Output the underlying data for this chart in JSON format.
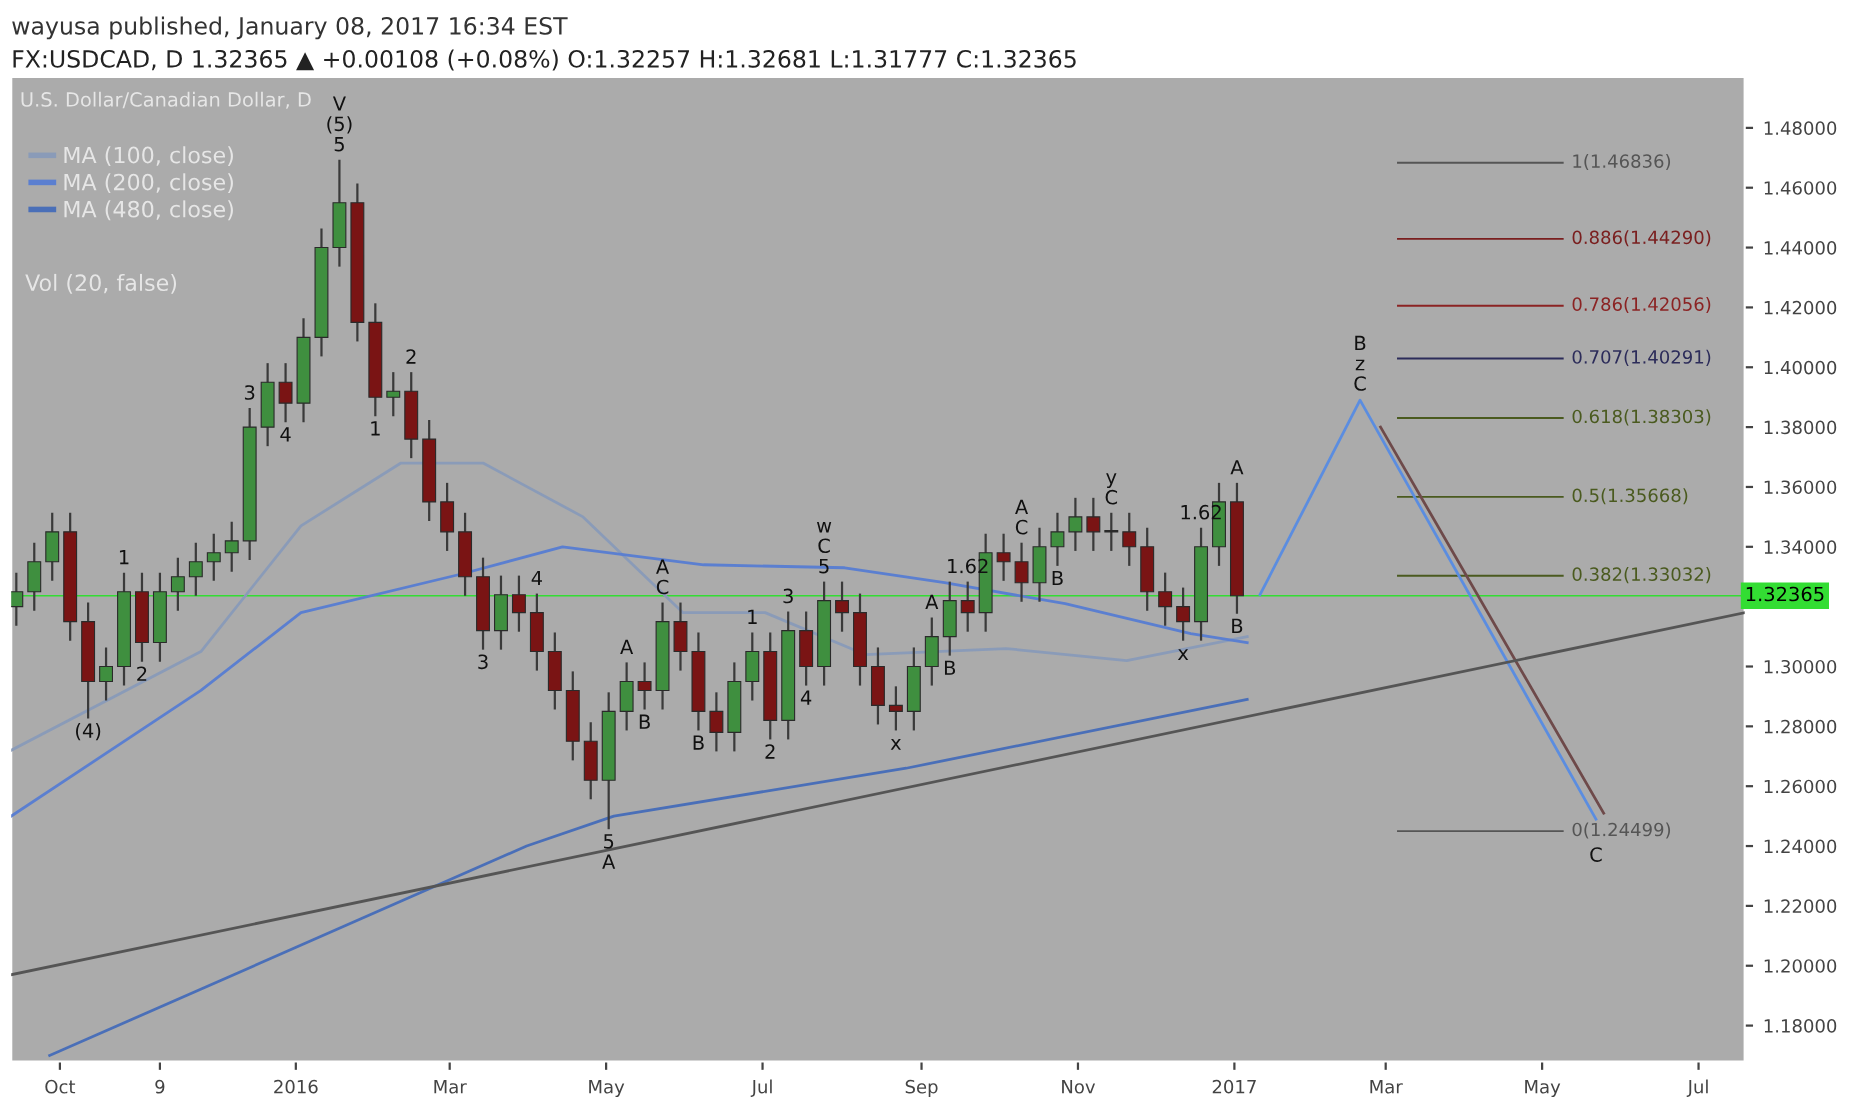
{
  "chart_data": {
    "type": "candlestick",
    "title": "wayusa published, January 08, 2017 16:34 EST",
    "subtitle": "FX:USDCAD, D 1.32365 ▲ +0.00108 (+0.08%) O:1.32257 H:1.32681 L:1.31777 C:1.32365",
    "legend_title": "U.S. Dollar/Canadian Dollar, D",
    "x": [
      "2015-09-14",
      "2015-09-21",
      "2015-09-28",
      "2015-10-05",
      "2015-10-12",
      "2015-10-19",
      "2015-10-26",
      "2015-11-02",
      "2015-11-09",
      "2015-11-16",
      "2015-11-23",
      "2015-11-30",
      "2015-12-07",
      "2015-12-14",
      "2015-12-21",
      "2015-12-28",
      "2016-01-04",
      "2016-01-11",
      "2016-01-18",
      "2016-01-25",
      "2016-02-01",
      "2016-02-08",
      "2016-02-15",
      "2016-02-22",
      "2016-02-29",
      "2016-03-07",
      "2016-03-14",
      "2016-03-21",
      "2016-03-28",
      "2016-04-04",
      "2016-04-11",
      "2016-04-18",
      "2016-04-25",
      "2016-05-02",
      "2016-05-09",
      "2016-05-16",
      "2016-05-23",
      "2016-05-30",
      "2016-06-06",
      "2016-06-13",
      "2016-06-20",
      "2016-06-27",
      "2016-07-04",
      "2016-07-11",
      "2016-07-18",
      "2016-07-25",
      "2016-08-01",
      "2016-08-08",
      "2016-08-15",
      "2016-08-22",
      "2016-08-29",
      "2016-09-05",
      "2016-09-12",
      "2016-09-19",
      "2016-09-26",
      "2016-10-03",
      "2016-10-10",
      "2016-10-17",
      "2016-10-24",
      "2016-10-31",
      "2016-11-07",
      "2016-11-14",
      "2016-11-21",
      "2016-11-28",
      "2016-12-05",
      "2016-12-12",
      "2016-12-19",
      "2016-12-26",
      "2017-01-02"
    ],
    "ohlc": [
      [
        1.32,
        1.331,
        1.314,
        1.325
      ],
      [
        1.325,
        1.341,
        1.319,
        1.335
      ],
      [
        1.335,
        1.351,
        1.329,
        1.345
      ],
      [
        1.345,
        1.351,
        1.309,
        1.315
      ],
      [
        1.315,
        1.321,
        1.283,
        1.295
      ],
      [
        1.295,
        1.306,
        1.289,
        1.3
      ],
      [
        1.3,
        1.331,
        1.294,
        1.325
      ],
      [
        1.325,
        1.331,
        1.302,
        1.308
      ],
      [
        1.308,
        1.331,
        1.302,
        1.325
      ],
      [
        1.325,
        1.336,
        1.319,
        1.33
      ],
      [
        1.33,
        1.341,
        1.324,
        1.335
      ],
      [
        1.335,
        1.344,
        1.329,
        1.338
      ],
      [
        1.338,
        1.348,
        1.332,
        1.342
      ],
      [
        1.342,
        1.386,
        1.336,
        1.38
      ],
      [
        1.38,
        1.401,
        1.374,
        1.395
      ],
      [
        1.395,
        1.401,
        1.382,
        1.388
      ],
      [
        1.388,
        1.416,
        1.382,
        1.41
      ],
      [
        1.41,
        1.446,
        1.404,
        1.44
      ],
      [
        1.44,
        1.469,
        1.434,
        1.455
      ],
      [
        1.455,
        1.461,
        1.409,
        1.415
      ],
      [
        1.415,
        1.421,
        1.384,
        1.39
      ],
      [
        1.39,
        1.398,
        1.384,
        1.392
      ],
      [
        1.392,
        1.398,
        1.37,
        1.376
      ],
      [
        1.376,
        1.382,
        1.349,
        1.355
      ],
      [
        1.355,
        1.361,
        1.339,
        1.345
      ],
      [
        1.345,
        1.351,
        1.324,
        1.33
      ],
      [
        1.33,
        1.336,
        1.306,
        1.312
      ],
      [
        1.312,
        1.33,
        1.306,
        1.324
      ],
      [
        1.324,
        1.33,
        1.312,
        1.318
      ],
      [
        1.318,
        1.324,
        1.299,
        1.305
      ],
      [
        1.305,
        1.311,
        1.286,
        1.292
      ],
      [
        1.292,
        1.298,
        1.269,
        1.275
      ],
      [
        1.275,
        1.281,
        1.256,
        1.262
      ],
      [
        1.262,
        1.291,
        1.246,
        1.285
      ],
      [
        1.285,
        1.301,
        1.279,
        1.295
      ],
      [
        1.295,
        1.301,
        1.286,
        1.292
      ],
      [
        1.292,
        1.321,
        1.286,
        1.315
      ],
      [
        1.315,
        1.321,
        1.299,
        1.305
      ],
      [
        1.305,
        1.311,
        1.279,
        1.285
      ],
      [
        1.285,
        1.291,
        1.272,
        1.278
      ],
      [
        1.278,
        1.301,
        1.272,
        1.295
      ],
      [
        1.295,
        1.311,
        1.289,
        1.305
      ],
      [
        1.305,
        1.311,
        1.276,
        1.282
      ],
      [
        1.282,
        1.318,
        1.276,
        1.312
      ],
      [
        1.312,
        1.318,
        1.294,
        1.3
      ],
      [
        1.3,
        1.328,
        1.294,
        1.322
      ],
      [
        1.322,
        1.328,
        1.312,
        1.318
      ],
      [
        1.318,
        1.324,
        1.294,
        1.3
      ],
      [
        1.3,
        1.306,
        1.281,
        1.287
      ],
      [
        1.287,
        1.293,
        1.279,
        1.285
      ],
      [
        1.285,
        1.306,
        1.279,
        1.3
      ],
      [
        1.3,
        1.316,
        1.294,
        1.31
      ],
      [
        1.31,
        1.328,
        1.304,
        1.322
      ],
      [
        1.322,
        1.328,
        1.312,
        1.318
      ],
      [
        1.318,
        1.344,
        1.312,
        1.338
      ],
      [
        1.338,
        1.344,
        1.329,
        1.335
      ],
      [
        1.335,
        1.341,
        1.322,
        1.328
      ],
      [
        1.328,
        1.346,
        1.322,
        1.34
      ],
      [
        1.34,
        1.351,
        1.334,
        1.345
      ],
      [
        1.345,
        1.356,
        1.339,
        1.35
      ],
      [
        1.35,
        1.356,
        1.339,
        1.345
      ],
      [
        1.345,
        1.351,
        1.339,
        1.345
      ],
      [
        1.345,
        1.351,
        1.334,
        1.34
      ],
      [
        1.34,
        1.346,
        1.319,
        1.325
      ],
      [
        1.325,
        1.331,
        1.314,
        1.32
      ],
      [
        1.32,
        1.326,
        1.309,
        1.315
      ],
      [
        1.315,
        1.346,
        1.309,
        1.34
      ],
      [
        1.34,
        1.361,
        1.334,
        1.355
      ],
      [
        1.355,
        1.361,
        1.318,
        1.32365
      ]
    ],
    "series": [
      {
        "name": "MA (100, close)",
        "type": "line",
        "color": "#8a9bb8",
        "x": [
          "2015-09-12",
          "2015-11-25",
          "2016-01-03",
          "2016-02-11",
          "2016-03-14",
          "2016-04-22",
          "2016-05-31",
          "2016-07-02",
          "2016-08-10",
          "2016-10-04",
          "2016-11-20",
          "2017-01-06"
        ],
        "values": [
          1.272,
          1.305,
          1.347,
          1.368,
          1.368,
          1.35,
          1.318,
          1.318,
          1.304,
          1.306,
          1.302,
          1.31
        ]
      },
      {
        "name": "MA (200, close)",
        "type": "line",
        "color": "#5b7fd0",
        "x": [
          "2015-09-12",
          "2015-11-25",
          "2016-01-03",
          "2016-03-06",
          "2016-04-14",
          "2016-06-08",
          "2016-08-02",
          "2016-09-10",
          "2016-10-27",
          "2016-12-15",
          "2017-01-06"
        ],
        "values": [
          1.25,
          1.292,
          1.318,
          1.331,
          1.34,
          1.334,
          1.333,
          1.328,
          1.321,
          1.311,
          1.308
        ]
      },
      {
        "name": "MA (480, close)",
        "type": "line",
        "color": "#4a6fb8",
        "x": [
          "2015-09-27",
          "2016-03-31",
          "2016-05-04",
          "2016-08-26",
          "2017-01-06"
        ],
        "values": [
          1.17,
          1.24,
          1.25,
          1.266,
          1.289
        ]
      },
      {
        "type": "line",
        "color": "#5b8de0",
        "x": [
          "2017-01-11",
          "2017-02-19",
          "2017-05-22"
        ],
        "values": [
          1.324,
          1.389,
          1.249
        ]
      },
      {
        "type": "line",
        "color": "#6e4a4a",
        "x": [
          "2017-02-27",
          "2017-05-25"
        ],
        "values": [
          1.38,
          1.251
        ]
      },
      {
        "type": "line",
        "color": "#555555",
        "x": [
          "2015-09-12",
          "2017-07-19"
        ],
        "values": [
          1.197,
          1.318
        ]
      }
    ],
    "legend": "top left",
    "xlim": [
      "2015-09-12",
      "2017-07-19"
    ],
    "xticks": [
      {
        "value": "2015-10-01",
        "label": "Oct"
      },
      {
        "value": "2015-11-09",
        "label": "9"
      },
      {
        "value": "2016-01-01",
        "label": "2016"
      },
      {
        "value": "2016-03-01",
        "label": "Mar"
      },
      {
        "value": "2016-05-01",
        "label": "May"
      },
      {
        "value": "2016-07-01",
        "label": "Jul"
      },
      {
        "value": "2016-09-01",
        "label": "Sep"
      },
      {
        "value": "2016-11-01",
        "label": "Nov"
      },
      {
        "value": "2017-01-01",
        "label": "2017"
      },
      {
        "value": "2017-03-01",
        "label": "Mar"
      },
      {
        "value": "2017-05-01",
        "label": "May"
      },
      {
        "value": "2017-07-01",
        "label": "Jul"
      }
    ],
    "ylim": [
      1.168,
      1.497
    ],
    "yticks": [
      {
        "value": 1.18,
        "label": "1.18000"
      },
      {
        "value": 1.2,
        "label": "1.20000"
      },
      {
        "value": 1.22,
        "label": "1.22000"
      },
      {
        "value": 1.24,
        "label": "1.24000"
      },
      {
        "value": 1.26,
        "label": "1.26000"
      },
      {
        "value": 1.28,
        "label": "1.28000"
      },
      {
        "value": 1.3,
        "label": "1.30000"
      },
      {
        "value": 1.32,
        "label": null
      },
      {
        "value": 1.34,
        "label": "1.34000"
      },
      {
        "value": 1.36,
        "label": "1.36000"
      },
      {
        "value": 1.38,
        "label": "1.38000"
      },
      {
        "value": 1.4,
        "label": "1.40000"
      },
      {
        "value": 1.42,
        "label": "1.42000"
      },
      {
        "value": 1.44,
        "label": "1.44000"
      },
      {
        "value": 1.46,
        "label": "1.46000"
      },
      {
        "value": 1.48,
        "label": "1.48000"
      }
    ],
    "ref_lines": [
      {
        "axis": "y",
        "value": 1.46836,
        "label": "1(1.46836)",
        "color": "#555555"
      },
      {
        "axis": "y",
        "value": 1.4429,
        "label": "0.886(1.44290)",
        "color": "#7a1f1f"
      },
      {
        "axis": "y",
        "value": 1.42056,
        "label": "0.786(1.42056)",
        "color": "#8b2323"
      },
      {
        "axis": "y",
        "value": 1.40291,
        "label": "0.707(1.40291)",
        "color": "#2c2c5a"
      },
      {
        "axis": "y",
        "value": 1.38303,
        "label": "0.618(1.38303)",
        "color": "#4a5a1f"
      },
      {
        "axis": "y",
        "value": 1.35668,
        "label": "0.5(1.35668)",
        "color": "#4a5a1f"
      },
      {
        "axis": "y",
        "value": 1.33032,
        "label": "0.382(1.33032)",
        "color": "#4a5a1f"
      },
      {
        "axis": "y",
        "value": 1.24499,
        "label": "0(1.24499)",
        "color": "#555555"
      },
      {
        "axis": "y",
        "value": 1.32365,
        "label": "1.32365",
        "color": "#33dd33"
      }
    ],
    "annotations": [
      "Vol (20, false)",
      {
        "text": "V\n(5)\n5",
        "x": "2016-01-18",
        "y": 1.469
      },
      {
        "text": "3",
        "x": "2015-12-14",
        "y": 1.386
      },
      {
        "text": "4",
        "x": "2015-12-28",
        "y": 1.382
      },
      {
        "text": "1",
        "x": "2016-02-01",
        "y": 1.384
      },
      {
        "text": "2",
        "x": "2016-02-15",
        "y": 1.398
      },
      {
        "text": "1",
        "x": "2015-10-26",
        "y": 1.331
      },
      {
        "text": "2",
        "x": "2015-11-02",
        "y": 1.302
      },
      {
        "text": "(4)",
        "x": "2015-10-12",
        "y": 1.283
      },
      {
        "text": "3",
        "x": "2016-03-14",
        "y": 1.306
      },
      {
        "text": "4",
        "x": "2016-04-04",
        "y": 1.324
      },
      {
        "text": "5\nA",
        "x": "2016-05-02",
        "y": 1.246
      },
      {
        "text": "A",
        "x": "2016-05-09",
        "y": 1.301
      },
      {
        "text": "B",
        "x": "2016-05-16",
        "y": 1.286
      },
      {
        "text": "A\nC",
        "x": "2016-05-23",
        "y": 1.321
      },
      {
        "text": "B",
        "x": "2016-06-06",
        "y": 1.279
      },
      {
        "text": "1",
        "x": "2016-06-27",
        "y": 1.311
      },
      {
        "text": "2",
        "x": "2016-07-04",
        "y": 1.276
      },
      {
        "text": "3",
        "x": "2016-07-11",
        "y": 1.318
      },
      {
        "text": "4",
        "x": "2016-07-18",
        "y": 1.294
      },
      {
        "text": "w\nC\n5",
        "x": "2016-07-25",
        "y": 1.328
      },
      {
        "text": "x",
        "x": "2016-08-22",
        "y": 1.279
      },
      {
        "text": "A",
        "x": "2016-09-05",
        "y": 1.316
      },
      {
        "text": "B",
        "x": "2016-09-12",
        "y": 1.304
      },
      {
        "text": "1.62",
        "x": "2016-09-19",
        "y": 1.328
      },
      {
        "text": "A\nC",
        "x": "2016-10-10",
        "y": 1.341
      },
      {
        "text": "B",
        "x": "2016-10-24",
        "y": 1.334
      },
      {
        "text": "y\nC",
        "x": "2016-11-14",
        "y": 1.351
      },
      {
        "text": "x",
        "x": "2016-12-12",
        "y": 1.309
      },
      {
        "text": "1.62",
        "x": "2016-12-19",
        "y": 1.346
      },
      {
        "text": "A",
        "x": "2017-01-02",
        "y": 1.361
      },
      {
        "text": "B",
        "x": "2017-01-02",
        "y": 1.318
      },
      {
        "text": "B\nz\nC",
        "x": "2017-02-19",
        "y": 1.389
      },
      {
        "text": "C",
        "x": "2017-05-22",
        "y": 1.249
      }
    ]
  }
}
